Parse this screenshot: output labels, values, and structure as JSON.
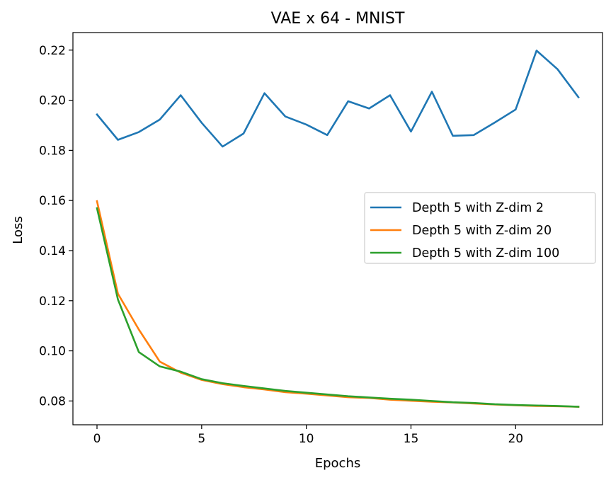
{
  "chart_data": {
    "type": "line",
    "title": "VAE x 64 - MNIST",
    "xlabel": "Epochs",
    "ylabel": "Loss",
    "xlim": [
      -1.15,
      24.15
    ],
    "ylim": [
      0.0705,
      0.227
    ],
    "xticks": [
      0,
      5,
      10,
      15,
      20
    ],
    "xtick_labels": [
      "0",
      "5",
      "10",
      "15",
      "20"
    ],
    "yticks": [
      0.08,
      0.1,
      0.12,
      0.14,
      0.16,
      0.18,
      0.2,
      0.22
    ],
    "ytick_labels": [
      "0.08",
      "0.10",
      "0.12",
      "0.14",
      "0.16",
      "0.18",
      "0.20",
      "0.22"
    ],
    "grid": false,
    "legend_position": "center-right",
    "x": [
      0,
      1,
      2,
      3,
      4,
      5,
      6,
      7,
      8,
      9,
      10,
      11,
      12,
      13,
      14,
      15,
      16,
      17,
      18,
      19,
      20,
      21,
      22,
      23
    ],
    "series": [
      {
        "name": "Depth 5 with Z-dim 2",
        "color": "#1f77b4",
        "values": [
          0.1943,
          0.1842,
          0.1873,
          0.1923,
          0.202,
          0.191,
          0.1815,
          0.1867,
          0.2028,
          0.1935,
          0.1903,
          0.1861,
          0.1996,
          0.1967,
          0.202,
          0.1875,
          0.2034,
          0.1858,
          0.1861,
          0.1911,
          0.1963,
          0.2198,
          0.2124,
          0.2012
        ]
      },
      {
        "name": "Depth 5 with Z-dim 20",
        "color": "#ff7f0e",
        "values": [
          0.1597,
          0.1228,
          0.1085,
          0.0957,
          0.0913,
          0.0884,
          0.0867,
          0.0855,
          0.0846,
          0.0835,
          0.0829,
          0.0822,
          0.0815,
          0.0812,
          0.0805,
          0.0801,
          0.0797,
          0.0794,
          0.079,
          0.0786,
          0.0783,
          0.078,
          0.0779,
          0.0777
        ]
      },
      {
        "name": "Depth 5 with Z-dim 100",
        "color": "#2ca02c",
        "values": [
          0.1569,
          0.1205,
          0.0995,
          0.0938,
          0.0917,
          0.0887,
          0.0871,
          0.086,
          0.085,
          0.084,
          0.0833,
          0.0826,
          0.0819,
          0.0814,
          0.0809,
          0.0805,
          0.08,
          0.0795,
          0.0792,
          0.0787,
          0.0784,
          0.0782,
          0.078,
          0.0777
        ]
      }
    ]
  }
}
